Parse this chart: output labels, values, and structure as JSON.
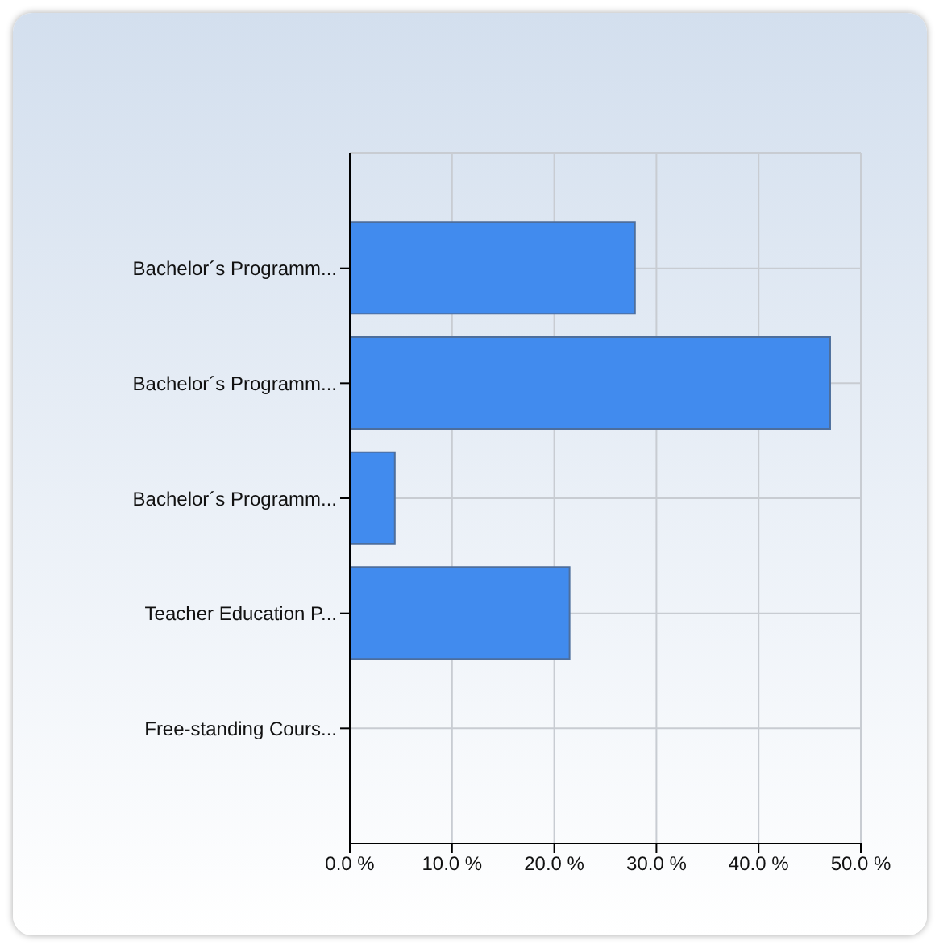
{
  "chart_data": {
    "type": "bar",
    "orientation": "horizontal",
    "categories": [
      "Bachelor´s Programm...",
      "Bachelor´s Programm...",
      "Bachelor´s Programm...",
      "Teacher Education P...",
      "Free-standing Cours..."
    ],
    "values": [
      27.9,
      47.0,
      4.4,
      21.5,
      0
    ],
    "color": "#418bee",
    "xlim": [
      0,
      50
    ],
    "xticks": [
      {
        "value": 0,
        "label": "0.0 %"
      },
      {
        "value": 10,
        "label": "10.0 %"
      },
      {
        "value": 20,
        "label": "20.0 %"
      },
      {
        "value": 30,
        "label": "30.0 %"
      },
      {
        "value": 40,
        "label": "40.0 %"
      },
      {
        "value": 50,
        "label": "50.0 %"
      }
    ],
    "grid": true
  }
}
